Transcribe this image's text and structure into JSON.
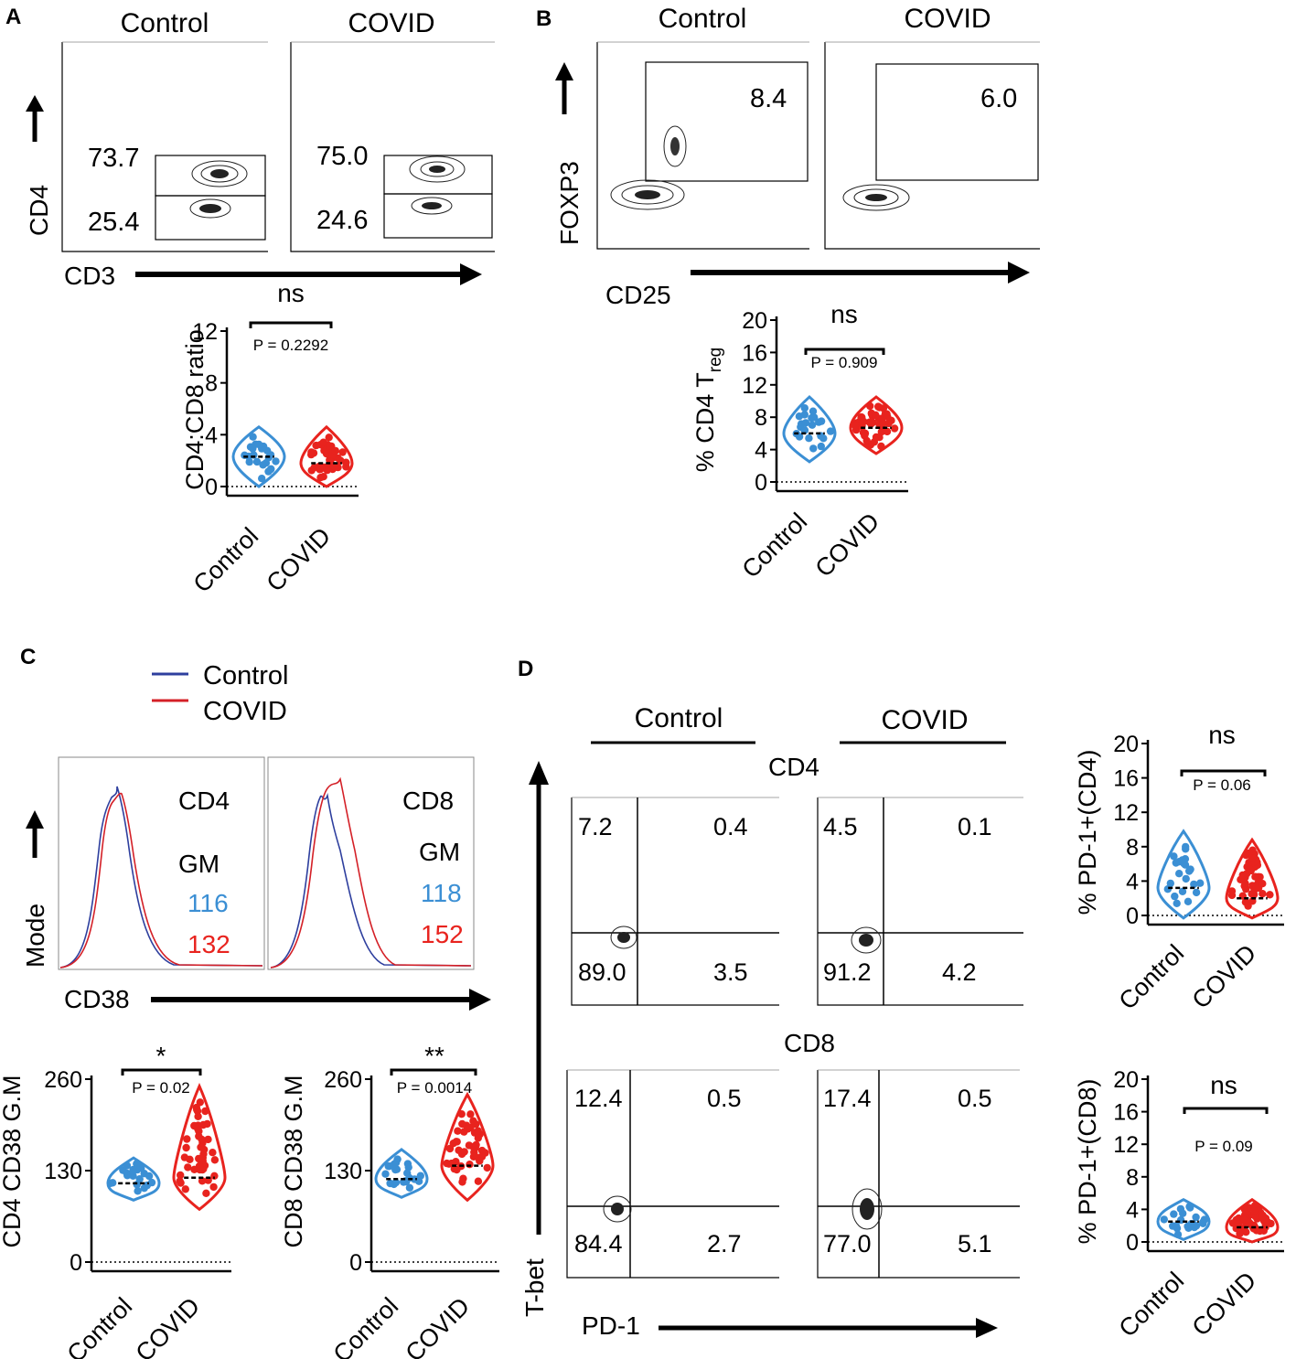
{
  "colors": {
    "control": "#3b8fd4",
    "covid": "#e8231e",
    "control_line": "#2e3f9e",
    "covid_line": "#d42027",
    "axis": "#000000"
  },
  "panel_letters": [
    "A",
    "B",
    "C",
    "D"
  ],
  "groups": {
    "control": "Control",
    "covid": "COVID"
  },
  "panel_a": {
    "flow": {
      "x_label": "CD3",
      "y_label": "CD4",
      "control": {
        "title": "Control",
        "upper_pct": "73.7",
        "lower_pct": "25.4"
      },
      "covid": {
        "title": "COVID",
        "upper_pct": "75.0",
        "lower_pct": "24.6"
      }
    }
  },
  "panel_b": {
    "flow": {
      "x_label": "CD25",
      "y_label": "FOXP3",
      "control": {
        "title": "Control",
        "gate_pct": "8.4"
      },
      "covid": {
        "title": "COVID",
        "gate_pct": "6.0"
      }
    }
  },
  "panel_c": {
    "legend": [
      "Control",
      "COVID"
    ],
    "x_label": "CD38",
    "y_label": "Mode",
    "cd4_hist": {
      "population": "CD4",
      "stat": "GM",
      "control_gm": "116",
      "covid_gm": "132"
    },
    "cd8_hist": {
      "population": "CD8",
      "stat": "GM",
      "control_gm": "118",
      "covid_gm": "152"
    }
  },
  "panel_d": {
    "header_control": "Control",
    "header_covid": "COVID",
    "x_label": "PD-1",
    "y_label": "T-bet",
    "cd4_row": {
      "label": "CD4",
      "control": {
        "ul": "7.2",
        "ur": "0.4",
        "ll": "89.0",
        "lr": "3.5"
      },
      "covid": {
        "ul": "4.5",
        "ur": "0.1",
        "ll": "91.2",
        "lr": "4.2"
      }
    },
    "cd8_row": {
      "label": "CD8",
      "control": {
        "ul": "12.4",
        "ur": "0.5",
        "ll": "84.4",
        "lr": "2.7"
      },
      "covid": {
        "ul": "17.4",
        "ur": "0.5",
        "ll": "77.0",
        "lr": "5.1"
      }
    }
  },
  "chart_data": [
    {
      "id": "ratio",
      "type": "violin",
      "ylabel": "CD4:CD8 ratio",
      "yticks": [
        "0",
        "4",
        "8",
        "12"
      ],
      "ylim": [
        0,
        12
      ],
      "categories": [
        "Control",
        "COVID"
      ],
      "significance": "ns",
      "p_value": "P = 0.2292",
      "medians": [
        2.3,
        1.8
      ],
      "ranges": [
        [
          0,
          4.6
        ],
        [
          0,
          4.6
        ]
      ]
    },
    {
      "id": "treg",
      "type": "violin",
      "ylabel": "% CD4 T",
      "ylabel_sub": "reg",
      "yticks": [
        "0",
        "4",
        "8",
        "12",
        "16",
        "20"
      ],
      "ylim": [
        0,
        20
      ],
      "categories": [
        "Control",
        "COVID"
      ],
      "significance": "ns",
      "p_value": "P = 0.909",
      "medians": [
        6.0,
        6.7
      ],
      "ranges": [
        [
          2.5,
          10.5
        ],
        [
          3.5,
          10.5
        ]
      ]
    },
    {
      "id": "cd4cd38",
      "type": "violin",
      "ylabel": "CD4 CD38 G.M",
      "yticks": [
        "0",
        "130",
        "260"
      ],
      "ylim": [
        0,
        260
      ],
      "categories": [
        "Control",
        "COVID"
      ],
      "significance": "*",
      "p_value": "P = 0.02",
      "medians": [
        112,
        120
      ],
      "ranges": [
        [
          88,
          148
        ],
        [
          75,
          250
        ]
      ]
    },
    {
      "id": "cd8cd38",
      "type": "violin",
      "ylabel": "CD8 CD38 G.M",
      "yticks": [
        "0",
        "130",
        "260"
      ],
      "ylim": [
        0,
        260
      ],
      "categories": [
        "Control",
        "COVID"
      ],
      "significance": "**",
      "p_value": "P = 0.0014",
      "medians": [
        118,
        137
      ],
      "ranges": [
        [
          92,
          160
        ],
        [
          88,
          238
        ]
      ]
    },
    {
      "id": "pd1cd4",
      "type": "violin",
      "ylabel": "% PD-1+(CD4)",
      "yticks": [
        "0",
        "4",
        "8",
        "12",
        "16",
        "20"
      ],
      "ylim": [
        0,
        20
      ],
      "categories": [
        "Control",
        "COVID"
      ],
      "significance": "ns",
      "p_value": "P = 0.06",
      "medians": [
        3.2,
        2.0
      ],
      "ranges": [
        [
          -0.3,
          9.8
        ],
        [
          -0.3,
          8.8
        ]
      ]
    },
    {
      "id": "pd1cd8",
      "type": "violin",
      "ylabel": "% PD-1+(CD8)",
      "yticks": [
        "0",
        "4",
        "8",
        "12",
        "16",
        "20"
      ],
      "ylim": [
        0,
        20
      ],
      "categories": [
        "Control",
        "COVID"
      ],
      "significance": "ns",
      "p_value": "P = 0.09",
      "medians": [
        2.5,
        1.8
      ],
      "ranges": [
        [
          0.3,
          5.2
        ],
        [
          0,
          5.2
        ]
      ]
    }
  ]
}
